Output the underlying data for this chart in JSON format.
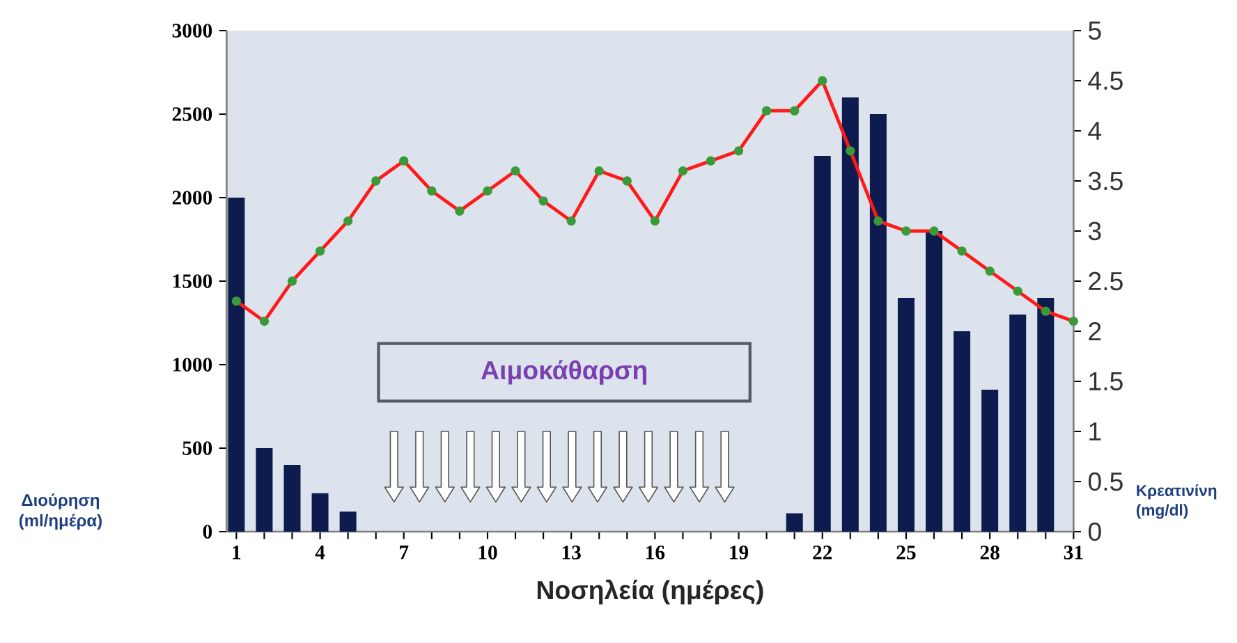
{
  "chart_data": {
    "type": "bar",
    "x": [
      1,
      2,
      3,
      4,
      5,
      6,
      7,
      8,
      9,
      10,
      11,
      12,
      13,
      14,
      15,
      16,
      17,
      18,
      19,
      20,
      21,
      22,
      23,
      24,
      25,
      26,
      27,
      28,
      29,
      30,
      31
    ],
    "xlim": [
      0.65,
      31
    ],
    "xticks": [
      1,
      {
        "value": 2,
        "label": null
      },
      {
        "value": 3,
        "label": null
      },
      4,
      {
        "value": 5,
        "label": null
      },
      {
        "value": 6,
        "label": null
      },
      7,
      {
        "value": 8,
        "label": null
      },
      {
        "value": 9,
        "label": null
      },
      10,
      {
        "value": 11,
        "label": null
      },
      {
        "value": 12,
        "label": null
      },
      13,
      {
        "value": 14,
        "label": null
      },
      {
        "value": 15,
        "label": null
      },
      16,
      {
        "value": 17,
        "label": null
      },
      {
        "value": 18,
        "label": null
      },
      19,
      {
        "value": 20,
        "label": null
      },
      {
        "value": 21,
        "label": null
      },
      22,
      {
        "value": 23,
        "label": null
      },
      {
        "value": 24,
        "label": null
      },
      25,
      {
        "value": 26,
        "label": null
      },
      {
        "value": 27,
        "label": null
      },
      28,
      {
        "value": 29,
        "label": null
      },
      {
        "value": 30,
        "label": null
      },
      31
    ],
    "ylim": [
      0,
      3000
    ],
    "yticks": [
      0,
      500,
      1000,
      1500,
      2000,
      2500,
      3000
    ],
    "y2lim": [
      0,
      5
    ],
    "y2ticks": [
      0,
      0.5,
      1,
      1.5,
      2,
      2.5,
      3,
      3.5,
      4,
      4.5,
      5
    ],
    "xlabel": "Νοσηλεία (ημέρες)",
    "ylabel": "Διούρηση (ml/ημέρα)",
    "y2label": "Κρεατινίνη (mg/dl)",
    "annotations": [
      "Αιμοκάθαρση"
    ],
    "series": [
      {
        "color": "#0d1b4f",
        "values": [
          2000,
          500,
          400,
          230,
          120,
          null,
          null,
          null,
          null,
          null,
          null,
          null,
          null,
          null,
          null,
          null,
          null,
          null,
          null,
          null,
          110,
          2250,
          2600,
          2500,
          1400,
          1800,
          1200,
          850,
          1300,
          1400,
          null
        ]
      },
      {
        "type": "line",
        "axis": "y2",
        "color": "#ff1a1a",
        "marker": "circle",
        "values": [
          2.3,
          2.1,
          2.5,
          2.8,
          3.1,
          3.5,
          3.7,
          3.4,
          3.2,
          3.4,
          3.6,
          3.3,
          3.1,
          3.6,
          3.5,
          3.1,
          3.6,
          3.7,
          3.8,
          4.2,
          4.2,
          4.5,
          3.8,
          3.1,
          3.0,
          3.0,
          2.8,
          2.6,
          2.4,
          2.2,
          2.1
        ]
      }
    ]
  }
}
